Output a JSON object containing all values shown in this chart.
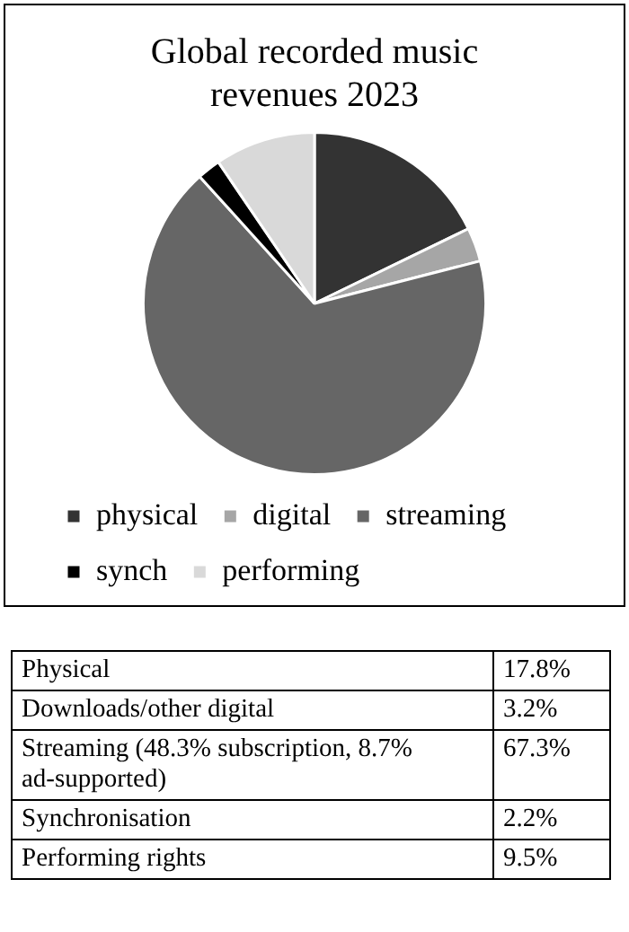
{
  "chart_data": {
    "type": "pie",
    "title": "Global recorded music revenues 2023",
    "categories": [
      "physical",
      "digital",
      "streaming",
      "synch",
      "performing"
    ],
    "values": [
      17.8,
      3.2,
      67.3,
      2.2,
      9.5
    ],
    "colors": [
      "#333333",
      "#a6a6a6",
      "#666666",
      "#000000",
      "#d9d9d9"
    ],
    "annotations": [
      "Physical",
      "17.8%",
      "Downloads/other digital",
      "3.2%",
      "Streaming (48.3% subscription, 8.7% ad-supported)",
      "67.3%",
      "Synchronisation",
      "2.2%",
      "Performing rights",
      "9.5%"
    ],
    "legend": "bottom"
  }
}
